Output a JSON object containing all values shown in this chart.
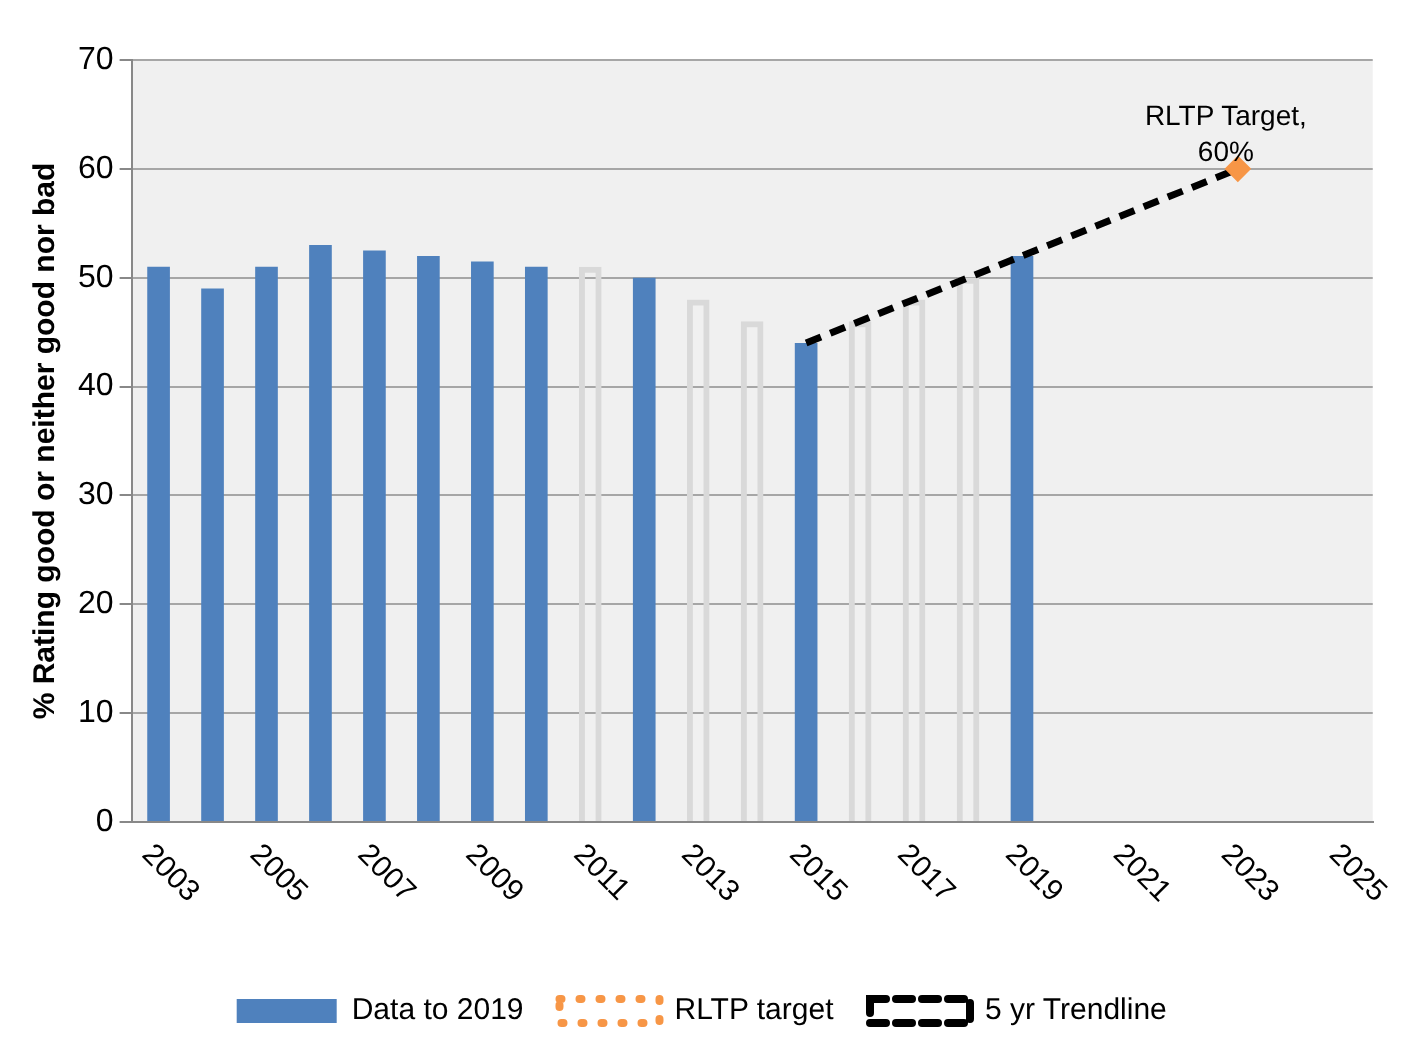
{
  "chart_data": {
    "type": "bar",
    "ylabel": "% Rating good or neither good nor bad",
    "categories": [
      "2003",
      null,
      "2005",
      null,
      "2007",
      null,
      "2009",
      null,
      "2011",
      null,
      "2013",
      null,
      "2015",
      null,
      "2017",
      null,
      "2019",
      null,
      "2021",
      null,
      "2023",
      null,
      "2025"
    ],
    "stacked": true,
    "series": [
      {
        "name": "Data to 2019",
        "color": "#4f81bd",
        "values": [
          51,
          49,
          51,
          53,
          52.5,
          52,
          51.5,
          51,
          null,
          50,
          null,
          null,
          44,
          null,
          null,
          null,
          52,
          null,
          null,
          null,
          null,
          null,
          null
        ]
      },
      {
        "color": "#d9d9d9",
        "values": [
          null,
          null,
          null,
          null,
          null,
          null,
          null,
          null,
          51,
          null,
          48,
          46,
          null,
          46,
          48,
          50,
          null,
          null,
          null,
          null,
          null,
          null,
          null
        ]
      },
      {
        "name": "RLTP target",
        "type": "scatter",
        "color": "#f79646",
        "marker": "diamond",
        "values": [
          null,
          null,
          null,
          null,
          null,
          null,
          null,
          null,
          null,
          null,
          null,
          null,
          null,
          null,
          null,
          null,
          null,
          null,
          null,
          null,
          60,
          null,
          null
        ]
      },
      {
        "name": "5 yr Trendline",
        "type": "line",
        "color": "#000000",
        "line_style": "dashed",
        "marker": "none",
        "values": [
          null,
          null,
          null,
          null,
          null,
          null,
          null,
          null,
          null,
          null,
          null,
          null,
          44,
          null,
          null,
          null,
          null,
          null,
          null,
          null,
          60,
          null,
          null
        ]
      }
    ],
    "ylim": [
      0,
      70
    ],
    "yticks": [
      0,
      10,
      20,
      30,
      40,
      50,
      60,
      70
    ],
    "grid": "y",
    "legend": "bottom",
    "annotations": [
      {
        "text": "RLTP Target, 60%",
        "x": "2023",
        "y": 60
      }
    ]
  }
}
